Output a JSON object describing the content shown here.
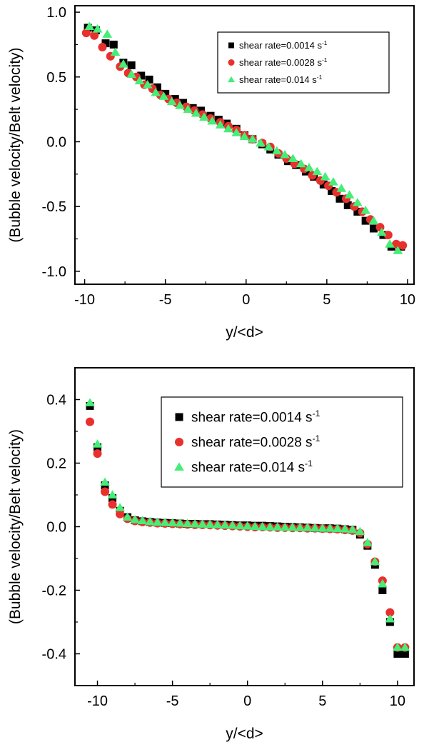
{
  "chart_data": [
    {
      "type": "scatter",
      "xlabel": "y/<d>",
      "ylabel": "(Bubble velocity/Belt velocity)",
      "xlim": [
        -10.6,
        10.4
      ],
      "ylim": [
        -1.1,
        1.05
      ],
      "xticks": [
        -10,
        -5,
        0,
        5,
        10
      ],
      "xtick_labels": [
        "-10",
        "-5",
        "0",
        "5",
        "10"
      ],
      "yticks": [
        -1.0,
        -0.5,
        0.0,
        0.5,
        1.0
      ],
      "ytick_labels": [
        "-1.0",
        "-0.5",
        "0.0",
        "0.5",
        "1.0"
      ],
      "grid": false,
      "legend_position": "top-right",
      "series": [
        {
          "name": "shear rate=0.0014 s",
          "name_sup": "-1",
          "marker": "square",
          "color": "#000000",
          "x": [
            -9.8,
            -9.3,
            -8.7,
            -8.2,
            -7.6,
            -7.1,
            -6.5,
            -6.0,
            -5.5,
            -5.0,
            -4.4,
            -3.9,
            -3.3,
            -2.8,
            -2.2,
            -1.7,
            -1.2,
            -0.6,
            -0.1,
            0.4,
            1.0,
            1.5,
            2.0,
            2.6,
            3.1,
            3.7,
            4.2,
            4.8,
            5.3,
            5.8,
            6.3,
            6.9,
            7.4,
            7.9,
            8.5,
            9.0,
            9.6
          ],
          "y": [
            0.88,
            0.86,
            0.76,
            0.75,
            0.61,
            0.59,
            0.51,
            0.48,
            0.42,
            0.37,
            0.33,
            0.3,
            0.26,
            0.24,
            0.2,
            0.17,
            0.14,
            0.1,
            0.05,
            0.02,
            -0.02,
            -0.06,
            -0.1,
            -0.15,
            -0.18,
            -0.23,
            -0.27,
            -0.33,
            -0.38,
            -0.44,
            -0.49,
            -0.54,
            -0.61,
            -0.67,
            -0.72,
            -0.81,
            -0.81
          ]
        },
        {
          "name": "shear rate=0.0028 s",
          "name_sup": "-1",
          "marker": "circle",
          "color": "#e8302c",
          "x": [
            -9.9,
            -9.4,
            -8.9,
            -8.4,
            -7.8,
            -7.3,
            -6.8,
            -6.3,
            -5.8,
            -5.3,
            -4.8,
            -4.3,
            -3.7,
            -3.2,
            -2.7,
            -2.2,
            -1.6,
            -1.1,
            -0.6,
            -0.1,
            0.4,
            1.0,
            1.5,
            2.0,
            2.5,
            3.0,
            3.6,
            4.1,
            4.6,
            5.1,
            5.6,
            6.2,
            6.7,
            7.2,
            7.7,
            8.3,
            8.8,
            9.3,
            9.7
          ],
          "y": [
            0.84,
            0.82,
            0.73,
            0.66,
            0.58,
            0.53,
            0.5,
            0.44,
            0.41,
            0.36,
            0.33,
            0.3,
            0.27,
            0.24,
            0.21,
            0.18,
            0.15,
            0.12,
            0.09,
            0.05,
            0.02,
            -0.01,
            -0.04,
            -0.09,
            -0.13,
            -0.17,
            -0.21,
            -0.26,
            -0.3,
            -0.34,
            -0.39,
            -0.44,
            -0.5,
            -0.54,
            -0.6,
            -0.66,
            -0.72,
            -0.79,
            -0.8
          ]
        },
        {
          "name": "shear rate=0.014 s",
          "name_sup": "-1",
          "marker": "triangle",
          "color": "#44ee77",
          "x": [
            -9.7,
            -9.2,
            -8.6,
            -8.1,
            -7.6,
            -7.1,
            -6.6,
            -6.1,
            -5.6,
            -5.1,
            -4.6,
            -4.1,
            -3.6,
            -3.1,
            -2.6,
            -2.1,
            -1.6,
            -1.1,
            -0.6,
            -0.1,
            0.4,
            0.9,
            1.4,
            1.9,
            2.4,
            2.9,
            3.4,
            3.9,
            4.4,
            4.9,
            5.4,
            5.9,
            6.4,
            6.9,
            7.4,
            7.9,
            8.4,
            8.9,
            9.4
          ],
          "y": [
            0.89,
            0.87,
            0.83,
            0.69,
            0.6,
            0.52,
            0.47,
            0.44,
            0.38,
            0.35,
            0.31,
            0.28,
            0.25,
            0.22,
            0.19,
            0.16,
            0.13,
            0.1,
            0.07,
            0.04,
            0.02,
            -0.01,
            -0.04,
            -0.07,
            -0.1,
            -0.13,
            -0.17,
            -0.2,
            -0.23,
            -0.27,
            -0.31,
            -0.36,
            -0.41,
            -0.47,
            -0.53,
            -0.61,
            -0.7,
            -0.79,
            -0.84
          ]
        }
      ]
    },
    {
      "type": "scatter",
      "xlabel": "y/<d>",
      "ylabel": "(Bubble velocity/Belt velocity)",
      "xlim": [
        -11.5,
        11.1
      ],
      "ylim": [
        -0.5,
        0.5
      ],
      "xticks": [
        -10,
        -5,
        0,
        5,
        10
      ],
      "xtick_labels": [
        "-10",
        "-5",
        "0",
        "5",
        "10"
      ],
      "yticks": [
        -0.4,
        -0.2,
        0.0,
        0.2,
        0.4
      ],
      "ytick_labels": [
        "-0.4",
        "-0.2",
        "0.0",
        "0.2",
        "0.4"
      ],
      "grid": false,
      "legend_position": "top-right",
      "series": [
        {
          "name": "shear rate=0.0014 s",
          "name_sup": "-1",
          "marker": "square",
          "color": "#000000",
          "x": [
            -10.5,
            -10.0,
            -9.5,
            -9.0,
            -8.5,
            -8.0,
            -7.5,
            -7.0,
            -6.5,
            -6.0,
            -5.5,
            -5.0,
            -4.5,
            -4.0,
            -3.5,
            -3.0,
            -2.5,
            -2.0,
            -1.5,
            -1.0,
            -0.5,
            0.0,
            0.5,
            1.0,
            1.5,
            2.0,
            2.5,
            3.0,
            3.5,
            4.0,
            4.5,
            5.0,
            5.5,
            6.0,
            6.5,
            7.0,
            7.5,
            8.0,
            8.5,
            9.0,
            9.5,
            10.0,
            10.5
          ],
          "y": [
            0.38,
            0.25,
            0.13,
            0.09,
            0.05,
            0.03,
            0.02,
            0.017,
            0.015,
            0.013,
            0.012,
            0.011,
            0.01,
            0.009,
            0.009,
            0.008,
            0.008,
            0.007,
            0.006,
            0.005,
            0.004,
            0.004,
            0.003,
            0.003,
            0.002,
            0.001,
            0.0,
            -0.001,
            -0.002,
            -0.003,
            -0.004,
            -0.005,
            -0.005,
            -0.006,
            -0.008,
            -0.01,
            -0.025,
            -0.06,
            -0.12,
            -0.2,
            -0.3,
            -0.4,
            -0.4
          ]
        },
        {
          "name": "shear rate=0.0028 s",
          "name_sup": "-1",
          "marker": "circle",
          "color": "#e8302c",
          "x": [
            -10.5,
            -10.0,
            -9.5,
            -9.0,
            -8.5,
            -8.0,
            -7.5,
            -7.0,
            -6.5,
            -6.0,
            -5.5,
            -5.0,
            -4.5,
            -4.0,
            -3.5,
            -3.0,
            -2.5,
            -2.0,
            -1.5,
            -1.0,
            -0.5,
            0.0,
            0.5,
            1.0,
            1.5,
            2.0,
            2.5,
            3.0,
            3.5,
            4.0,
            4.5,
            5.0,
            5.5,
            6.0,
            6.5,
            7.0,
            7.5,
            8.0,
            8.5,
            9.0,
            9.5,
            10.0,
            10.5
          ],
          "y": [
            0.33,
            0.23,
            0.11,
            0.07,
            0.04,
            0.025,
            0.018,
            0.015,
            0.013,
            0.011,
            0.01,
            0.009,
            0.008,
            0.007,
            0.006,
            0.006,
            0.005,
            0.004,
            0.003,
            0.002,
            0.001,
            0.0,
            -0.001,
            -0.001,
            -0.002,
            -0.003,
            -0.003,
            -0.004,
            -0.004,
            -0.005,
            -0.005,
            -0.006,
            -0.007,
            -0.008,
            -0.01,
            -0.012,
            -0.02,
            -0.055,
            -0.11,
            -0.17,
            -0.27,
            -0.38,
            -0.38
          ]
        },
        {
          "name": "shear rate=0.014 s",
          "name_sup": "-1",
          "marker": "triangle",
          "color": "#44ee77",
          "x": [
            -10.5,
            -10.0,
            -9.5,
            -9.0,
            -8.5,
            -8.0,
            -7.5,
            -7.0,
            -6.5,
            -6.0,
            -5.5,
            -5.0,
            -4.5,
            -4.0,
            -3.5,
            -3.0,
            -2.5,
            -2.0,
            -1.5,
            -1.0,
            -0.5,
            0.0,
            0.5,
            1.0,
            1.5,
            2.0,
            2.5,
            3.0,
            3.5,
            4.0,
            4.5,
            5.0,
            5.5,
            6.0,
            6.5,
            7.0,
            7.5,
            8.0,
            8.5,
            9.0,
            9.5,
            10.0,
            10.5
          ],
          "y": [
            0.39,
            0.26,
            0.14,
            0.1,
            0.06,
            0.03,
            0.022,
            0.019,
            0.016,
            0.014,
            0.013,
            0.012,
            0.011,
            0.01,
            0.009,
            0.008,
            0.007,
            0.006,
            0.005,
            0.004,
            0.003,
            0.002,
            0.001,
            0.0,
            -0.001,
            -0.001,
            -0.002,
            -0.002,
            -0.003,
            -0.003,
            -0.004,
            -0.005,
            -0.005,
            -0.006,
            -0.007,
            -0.009,
            -0.015,
            -0.05,
            -0.11,
            -0.18,
            -0.29,
            -0.38,
            -0.38
          ]
        }
      ]
    }
  ]
}
